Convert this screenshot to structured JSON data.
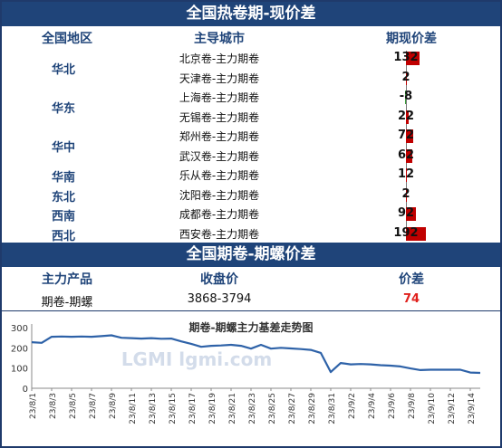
{
  "section1": {
    "title": "全国热卷期-现价差",
    "headers": [
      "全国地区",
      "主导城市",
      "期现价差"
    ],
    "rows": [
      {
        "region": "华北",
        "city": "北京卷-主力期卷",
        "spread": 132
      },
      {
        "region": "",
        "city": "天津卷-主力期卷",
        "spread": 2
      },
      {
        "region": "华东",
        "city": "上海卷-主力期卷",
        "spread": -8
      },
      {
        "region": "",
        "city": "无锡卷-主力期卷",
        "spread": 22
      },
      {
        "region": "华中",
        "city": "郑州卷-主力期卷",
        "spread": 72
      },
      {
        "region": "",
        "city": "武汉卷-主力期卷",
        "spread": 62
      },
      {
        "region": "华南",
        "city": "乐从卷-主力期卷",
        "spread": 12
      },
      {
        "region": "东北",
        "city": "沈阳卷-主力期卷",
        "spread": 2
      },
      {
        "region": "西南",
        "city": "成都卷-主力期卷",
        "spread": 92
      },
      {
        "region": "西北",
        "city": "西安卷-主力期卷",
        "spread": 192
      }
    ],
    "spread_labels": [
      "132",
      "2",
      "-8",
      "22",
      "72",
      "62",
      "12",
      "2",
      "92",
      "192"
    ]
  },
  "section2": {
    "title": "全国期卷-期螺价差",
    "headers": [
      "主力产品",
      "收盘价",
      "价差"
    ],
    "product": "期卷-期螺",
    "close_price": "3868-3794",
    "spread": "74"
  },
  "colors": {
    "banner": "#1f4479",
    "positive_bar": "#c00000",
    "negative_bar": "#3a9d3a",
    "line": "#2e62a8",
    "highlight": "#e0201c"
  },
  "chart_data": {
    "type": "line",
    "title": "期卷-期螺主力基差走势图",
    "watermark": "LGMI lgmi.com",
    "xlabel": "",
    "ylabel": "",
    "ylim": [
      0,
      300
    ],
    "yticks": [
      0,
      100,
      200,
      300
    ],
    "grid": false,
    "tick_labels": [
      "23/8/1",
      "23/8/3",
      "23/8/5",
      "23/8/7",
      "23/8/9",
      "23/8/11",
      "23/8/13",
      "23/8/15",
      "23/8/17",
      "23/8/19",
      "23/8/21",
      "23/8/23",
      "23/8/25",
      "23/8/27",
      "23/8/29",
      "23/8/31",
      "23/9/2",
      "23/9/4",
      "23/9/6",
      "23/9/8",
      "23/9/10",
      "23/9/12",
      "23/9/14"
    ],
    "x": [
      "23/8/1",
      "23/8/2",
      "23/8/3",
      "23/8/4",
      "23/8/5",
      "23/8/6",
      "23/8/7",
      "23/8/8",
      "23/8/9",
      "23/8/10",
      "23/8/11",
      "23/8/12",
      "23/8/13",
      "23/8/14",
      "23/8/15",
      "23/8/16",
      "23/8/17",
      "23/8/18",
      "23/8/19",
      "23/8/20",
      "23/8/21",
      "23/8/22",
      "23/8/23",
      "23/8/24",
      "23/8/25",
      "23/8/26",
      "23/8/27",
      "23/8/28",
      "23/8/29",
      "23/8/30",
      "23/8/31",
      "23/9/1",
      "23/9/2",
      "23/9/3",
      "23/9/4",
      "23/9/5",
      "23/9/6",
      "23/9/7",
      "23/9/8",
      "23/9/9",
      "23/9/10",
      "23/9/11",
      "23/9/12",
      "23/9/13",
      "23/9/14",
      "23/9/15"
    ],
    "series": [
      {
        "name": "",
        "values": [
          228,
          225,
          255,
          256,
          255,
          256,
          255,
          258,
          262,
          250,
          248,
          246,
          248,
          245,
          246,
          232,
          220,
          205,
          210,
          212,
          215,
          210,
          196,
          215,
          196,
          200,
          197,
          194,
          190,
          175,
          80,
          125,
          118,
          120,
          118,
          114,
          112,
          108,
          98,
          90,
          92,
          92,
          92,
          92,
          78,
          76
        ]
      }
    ]
  }
}
